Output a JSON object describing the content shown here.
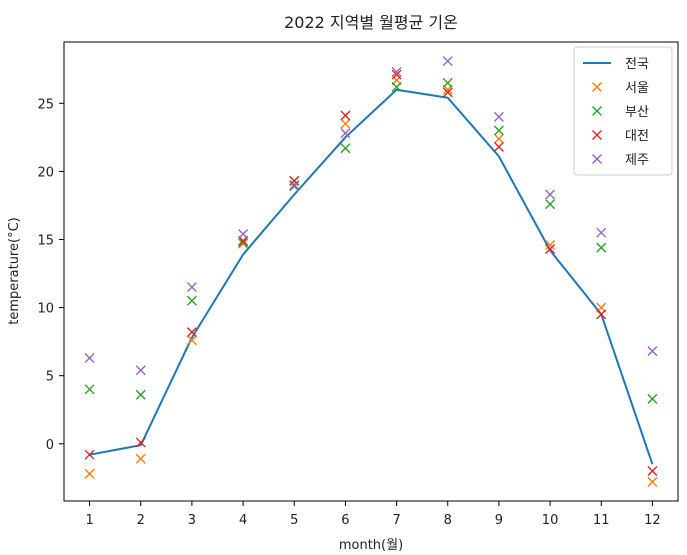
{
  "chart_data": {
    "type": "line",
    "title": "2022 지역별 월평균 기온",
    "xlabel": "month(월)",
    "ylabel": "temperature(°C)",
    "x": [
      1,
      2,
      3,
      4,
      5,
      6,
      7,
      8,
      9,
      10,
      11,
      12
    ],
    "xlim": [
      0.5,
      12.5
    ],
    "ylim": [
      -4.2,
      29.5
    ],
    "yticks": [
      0,
      5,
      10,
      15,
      20,
      25
    ],
    "grid": false,
    "legend_position": "upper-right",
    "series": [
      {
        "name": "전국",
        "kind": "line",
        "color": "#1f77b4",
        "values": [
          -0.8,
          -0.1,
          7.8,
          13.9,
          18.3,
          22.5,
          26.0,
          25.4,
          21.1,
          14.2,
          9.5,
          -1.5
        ]
      },
      {
        "name": "서울",
        "kind": "marker",
        "marker": "x",
        "color": "#ff7f0e",
        "values": [
          -2.2,
          -1.1,
          7.6,
          14.7,
          19.3,
          23.5,
          26.7,
          26.0,
          22.4,
          14.6,
          10.0,
          -2.8
        ]
      },
      {
        "name": "부산",
        "kind": "marker",
        "marker": "x",
        "color": "#2ca02c",
        "values": [
          4.0,
          3.6,
          10.5,
          14.8,
          19.0,
          21.7,
          26.2,
          26.5,
          23.0,
          17.6,
          14.4,
          3.3
        ]
      },
      {
        "name": "대전",
        "kind": "marker",
        "marker": "x",
        "color": "#d62728",
        "values": [
          -0.8,
          0.1,
          8.2,
          14.9,
          19.3,
          24.1,
          27.1,
          25.8,
          21.8,
          14.3,
          9.5,
          -2.0
        ]
      },
      {
        "name": "제주",
        "kind": "marker",
        "marker": "x",
        "color": "#9467bd",
        "values": [
          6.3,
          5.4,
          11.5,
          15.4,
          18.9,
          22.8,
          27.3,
          28.1,
          24.0,
          18.3,
          15.5,
          6.8
        ]
      }
    ]
  }
}
